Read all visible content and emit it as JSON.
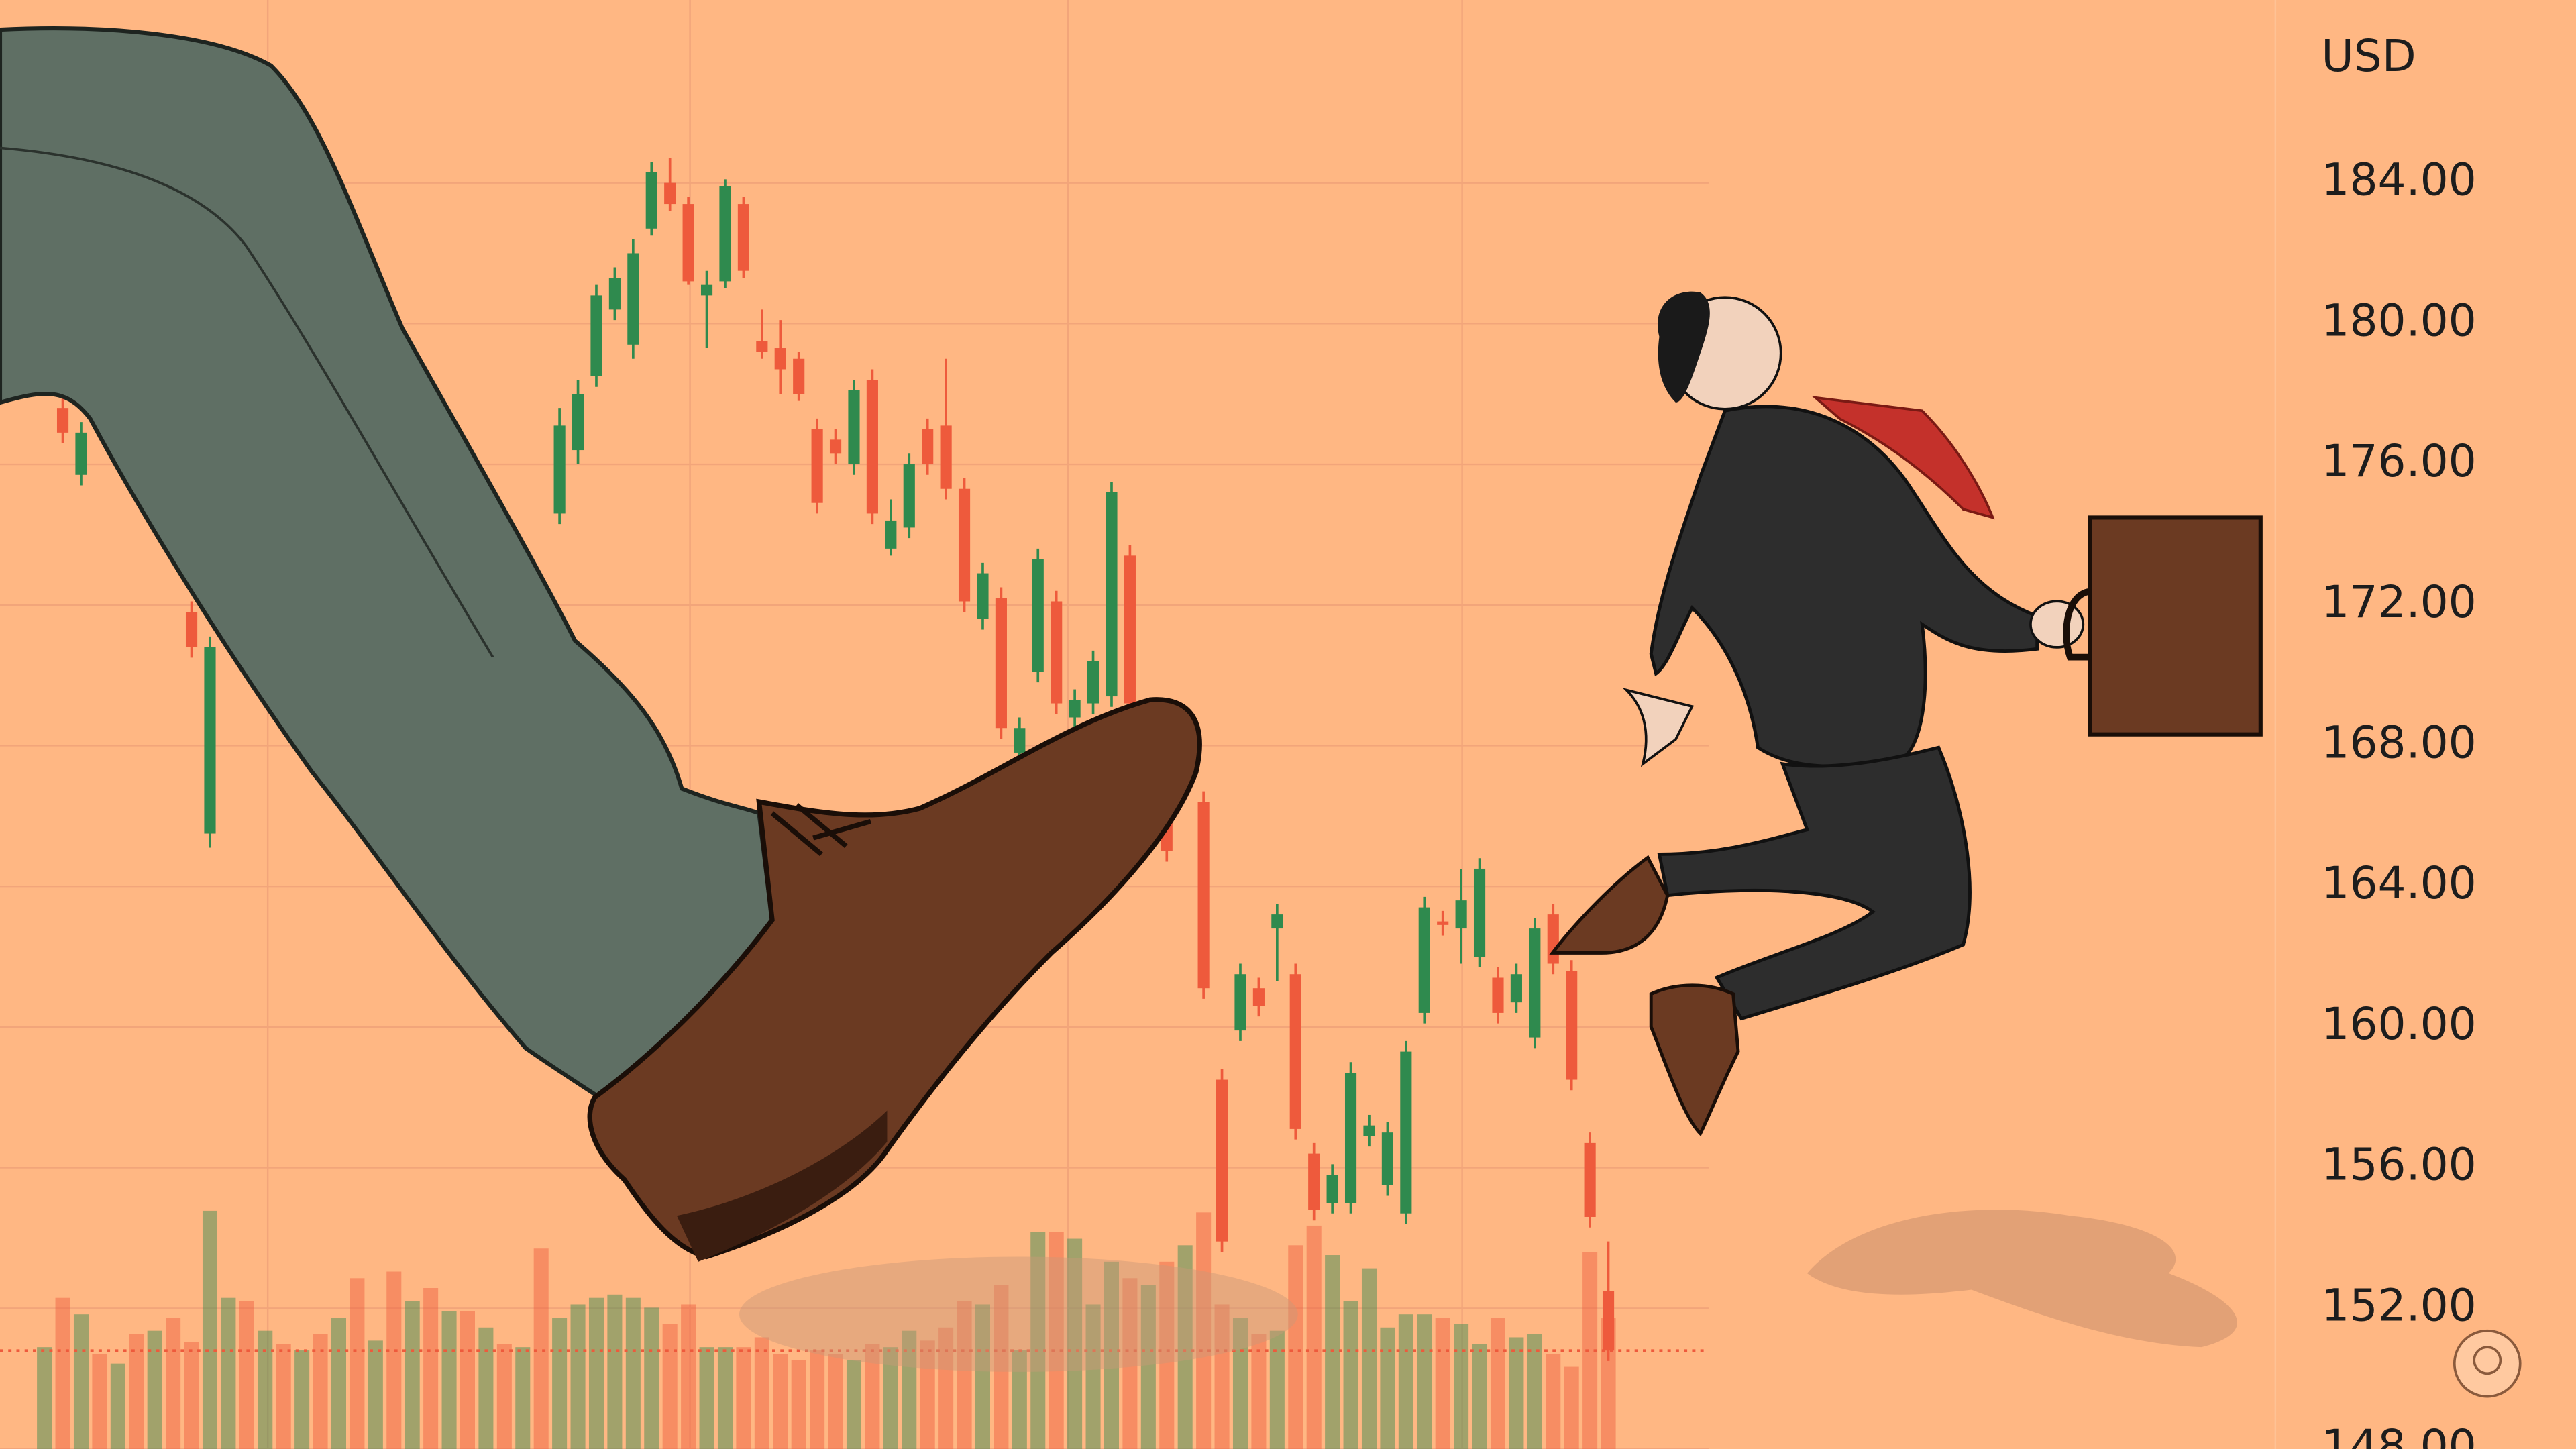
{
  "chart_data": {
    "type": "candlestick",
    "ylabel": "USD",
    "ylim": [
      148,
      189.2
    ],
    "yticks": [
      {
        "value": 184,
        "label": "184.00"
      },
      {
        "value": 180,
        "label": "180.00"
      },
      {
        "value": 176,
        "label": "176.00"
      },
      {
        "value": 172,
        "label": "172.00"
      },
      {
        "value": 168,
        "label": "168.00"
      },
      {
        "value": 164,
        "label": "164.00"
      },
      {
        "value": 160,
        "label": "160.00"
      },
      {
        "value": 156,
        "label": "156.00"
      },
      {
        "value": 152,
        "label": "152.00"
      },
      {
        "value": 148,
        "label": "148.00"
      }
    ],
    "grid": true,
    "up_color": "#2f8a4e",
    "down_color": "#ee5a3c",
    "categories": [
      null,
      null,
      null,
      null,
      null,
      null,
      null,
      null,
      null,
      null,
      null,
      null,
      null,
      null,
      null,
      null,
      null,
      null,
      null,
      null,
      null,
      null,
      null,
      null,
      null,
      null,
      null,
      null,
      null,
      null,
      null,
      null,
      null,
      null,
      null,
      null,
      null,
      null,
      null,
      null,
      null,
      null,
      null,
      null,
      null,
      null,
      null,
      null,
      null,
      null,
      null,
      null,
      null,
      null,
      null,
      null,
      null,
      null,
      null,
      null,
      null,
      null,
      null,
      null,
      null,
      null,
      null,
      null,
      null,
      null,
      null,
      null,
      null,
      null,
      null,
      null,
      null,
      null,
      null,
      null,
      null,
      null,
      null,
      null,
      null,
      null
    ],
    "open": [
      null,
      177.6,
      175.7,
      null,
      null,
      null,
      null,
      null,
      171.8,
      165.5,
      null,
      null,
      null,
      null,
      null,
      null,
      null,
      null,
      null,
      null,
      null,
      null,
      null,
      null,
      null,
      null,
      null,
      null,
      174.6,
      176.4,
      178.5,
      180.4,
      179.4,
      182.7,
      184.0,
      183.4,
      180.8,
      181.2,
      183.4,
      179.5,
      179.3,
      179.0,
      177.0,
      176.7,
      176.0,
      178.4,
      173.6,
      174.2,
      177.0,
      177.1,
      175.3,
      171.6,
      172.2,
      167.8,
      170.1,
      172.1,
      168.8,
      169.2,
      169.4,
      173.4,
      null,
      166.9,
      null,
      166.4,
      158.5,
      159.9,
      161.1,
      162.8,
      161.5,
      156.4,
      155.0,
      155.0,
      156.9,
      155.5,
      154.7,
      160.4,
      163.0,
      162.8,
      162.0,
      161.4,
      160.7,
      159.7,
      163.2,
      161.6,
      156.7,
      152.5
    ],
    "high": [
      null,
      177.9,
      177.2,
      null,
      null,
      null,
      null,
      null,
      172.1,
      171.1,
      null,
      null,
      null,
      null,
      null,
      null,
      null,
      null,
      null,
      null,
      null,
      null,
      null,
      null,
      null,
      null,
      null,
      null,
      177.6,
      178.4,
      181.1,
      181.6,
      182.4,
      184.6,
      184.7,
      183.6,
      181.5,
      184.1,
      183.6,
      180.4,
      180.1,
      179.2,
      177.3,
      177.0,
      178.4,
      178.7,
      175.0,
      176.3,
      177.3,
      179.0,
      175.6,
      173.2,
      172.5,
      168.8,
      173.6,
      172.4,
      169.6,
      170.7,
      175.5,
      173.7,
      null,
      167.2,
      null,
      166.7,
      158.8,
      161.8,
      161.4,
      163.5,
      161.8,
      156.7,
      156.1,
      159.0,
      157.5,
      157.3,
      159.6,
      163.7,
      163.3,
      164.5,
      164.8,
      161.7,
      161.8,
      163.1,
      163.5,
      161.9,
      157.0,
      153.9
    ],
    "low": [
      null,
      176.6,
      175.4,
      null,
      null,
      null,
      null,
      null,
      170.5,
      165.1,
      null,
      null,
      null,
      null,
      null,
      null,
      null,
      null,
      null,
      null,
      null,
      null,
      null,
      null,
      null,
      null,
      null,
      null,
      174.3,
      176.0,
      178.2,
      180.1,
      179.0,
      182.5,
      183.2,
      181.1,
      179.3,
      181.0,
      181.3,
      179.0,
      178.0,
      177.8,
      174.6,
      176.0,
      175.7,
      174.3,
      173.4,
      173.9,
      175.7,
      175.0,
      171.8,
      171.3,
      168.2,
      167.5,
      169.8,
      168.9,
      168.5,
      168.9,
      169.1,
      168.9,
      null,
      164.7,
      null,
      160.8,
      153.6,
      159.6,
      160.3,
      161.3,
      156.8,
      154.5,
      154.7,
      154.7,
      156.6,
      155.2,
      154.4,
      160.1,
      162.6,
      161.8,
      161.7,
      160.1,
      160.4,
      159.4,
      161.5,
      158.2,
      154.3,
      150.5
    ],
    "close": [
      null,
      176.9,
      176.9,
      null,
      null,
      null,
      null,
      null,
      170.8,
      170.8,
      null,
      null,
      null,
      null,
      null,
      null,
      null,
      null,
      null,
      null,
      null,
      null,
      null,
      null,
      null,
      null,
      null,
      null,
      177.1,
      178.0,
      180.8,
      181.3,
      182.0,
      184.3,
      183.4,
      181.2,
      181.1,
      183.9,
      181.5,
      179.2,
      178.7,
      178.0,
      174.9,
      176.3,
      178.1,
      174.6,
      174.4,
      176.0,
      176.0,
      175.3,
      172.1,
      172.9,
      168.5,
      168.5,
      173.3,
      169.2,
      169.3,
      170.4,
      175.2,
      169.2,
      null,
      165.0,
      null,
      161.1,
      153.9,
      161.5,
      160.6,
      163.2,
      157.1,
      154.8,
      155.8,
      158.7,
      157.2,
      157.0,
      159.3,
      163.4,
      162.9,
      163.6,
      164.5,
      160.4,
      161.5,
      162.8,
      161.8,
      158.5,
      154.6,
      150.8
    ],
    "volume": [
      62,
      92,
      82,
      58,
      52,
      70,
      72,
      80,
      65,
      145,
      92,
      90,
      72,
      64,
      60,
      70,
      80,
      104,
      66,
      108,
      90,
      98,
      84,
      84,
      74,
      64,
      62,
      122,
      80,
      88,
      92,
      94,
      92,
      86,
      76,
      88,
      62,
      62,
      62,
      68,
      58,
      54,
      60,
      58,
      54,
      64,
      62,
      72,
      66,
      74,
      90,
      88,
      100,
      60,
      132,
      132,
      128,
      88,
      114,
      104,
      100,
      114,
      124,
      144,
      88,
      80,
      70,
      72,
      124,
      136,
      118,
      90,
      110,
      74,
      82,
      82,
      80,
      76,
      64,
      80,
      68,
      70,
      58,
      50,
      120,
      80
    ]
  }
}
